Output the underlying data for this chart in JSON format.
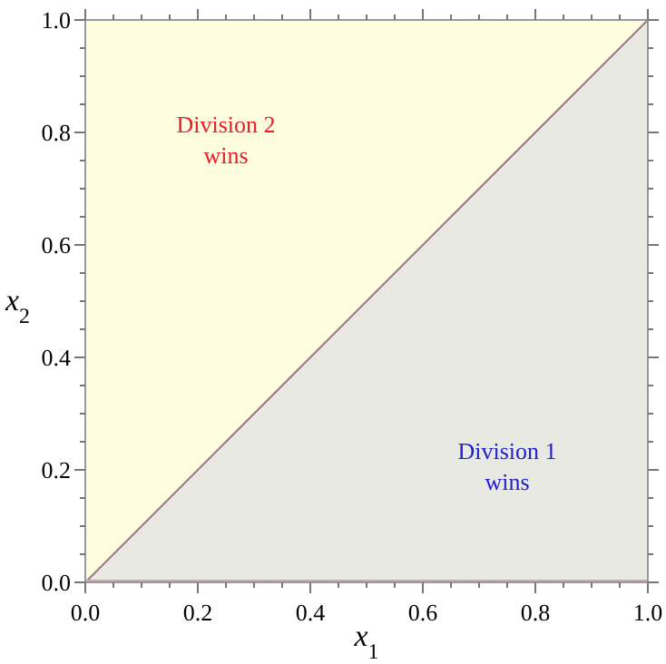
{
  "chart_data": {
    "type": "area",
    "xlabel": "x$_{1}$",
    "ylabel": "x$_{2}$",
    "x": [
      0,
      1
    ],
    "series": [
      {
        "color": "#e8e9e3",
        "values": [
          0,
          1
        ]
      }
    ],
    "xlim": [
      0,
      1
    ],
    "ylim": [
      0,
      1
    ],
    "xticks": [
      {
        "value": 0,
        "label": "0.0"
      },
      {
        "value": 0.05,
        "label": null
      },
      {
        "value": 0.1,
        "label": null
      },
      {
        "value": 0.15,
        "label": null
      },
      {
        "value": 0.2,
        "label": "0.2"
      },
      {
        "value": 0.25,
        "label": null
      },
      {
        "value": 0.3,
        "label": null
      },
      {
        "value": 0.35,
        "label": null
      },
      {
        "value": 0.4,
        "label": "0.4"
      },
      {
        "value": 0.45,
        "label": null
      },
      {
        "value": 0.5,
        "label": null
      },
      {
        "value": 0.55,
        "label": null
      },
      {
        "value": 0.6,
        "label": "0.6"
      },
      {
        "value": 0.65,
        "label": null
      },
      {
        "value": 0.7,
        "label": null
      },
      {
        "value": 0.75,
        "label": null
      },
      {
        "value": 0.8,
        "label": "0.8"
      },
      {
        "value": 0.85,
        "label": null
      },
      {
        "value": 0.9,
        "label": null
      },
      {
        "value": 0.95,
        "label": null
      },
      {
        "value": 1,
        "label": "1.0"
      }
    ],
    "yticks": [
      {
        "value": 0,
        "label": "0.0"
      },
      {
        "value": 0.05,
        "label": null
      },
      {
        "value": 0.1,
        "label": null
      },
      {
        "value": 0.15,
        "label": null
      },
      {
        "value": 0.2,
        "label": "0.2"
      },
      {
        "value": 0.25,
        "label": null
      },
      {
        "value": 0.3,
        "label": null
      },
      {
        "value": 0.35,
        "label": null
      },
      {
        "value": 0.4,
        "label": "0.4"
      },
      {
        "value": 0.45,
        "label": null
      },
      {
        "value": 0.5,
        "label": null
      },
      {
        "value": 0.55,
        "label": null
      },
      {
        "value": 0.6,
        "label": "0.6"
      },
      {
        "value": 0.65,
        "label": null
      },
      {
        "value": 0.7,
        "label": null
      },
      {
        "value": 0.75,
        "label": null
      },
      {
        "value": 0.8,
        "label": "0.8"
      },
      {
        "value": 0.85,
        "label": null
      },
      {
        "value": 0.9,
        "label": null
      },
      {
        "value": 0.95,
        "label": null
      },
      {
        "value": 1,
        "label": "1.0"
      }
    ],
    "annotations": [
      "Division 2\nwins",
      "Division 1\nwins"
    ]
  }
}
